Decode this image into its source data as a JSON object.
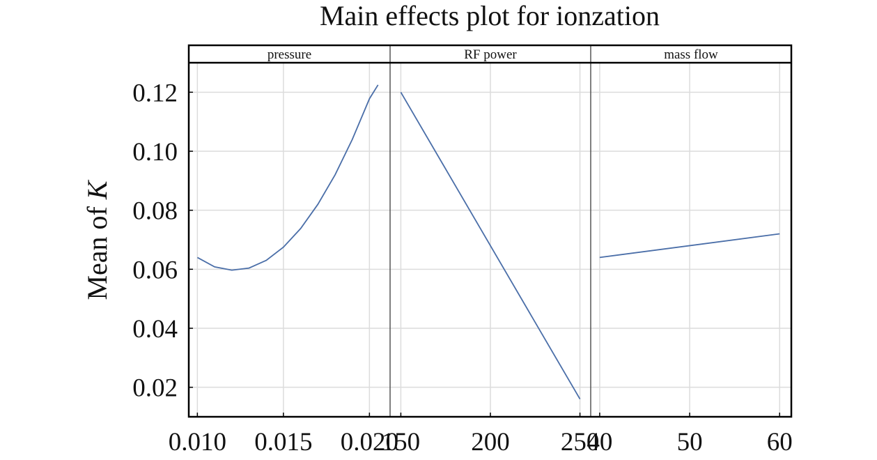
{
  "chart_data": {
    "type": "line",
    "title": "Main effects plot for ionzation",
    "ylabel": "Mean of ",
    "ylabel_italic": "K",
    "ylim": [
      0.01,
      0.13
    ],
    "yticks": [
      0.02,
      0.04,
      0.06,
      0.08,
      0.1,
      0.12
    ],
    "ytick_labels": [
      "0.02",
      "0.04",
      "0.06",
      "0.08",
      "0.10",
      "0.12"
    ],
    "grid": true,
    "line_color": "#4a6ea8",
    "panels": [
      {
        "label": "pressure",
        "xlim": [
          0.0095,
          0.0212
        ],
        "xticks": [
          0.01,
          0.015,
          0.02
        ],
        "xtick_labels": [
          "0.010",
          "0.015",
          "0.020"
        ],
        "x": [
          0.01,
          0.011,
          0.012,
          0.013,
          0.014,
          0.015,
          0.016,
          0.017,
          0.018,
          0.019,
          0.02,
          0.0205
        ],
        "y": [
          0.064,
          0.0608,
          0.0597,
          0.0604,
          0.063,
          0.0675,
          0.0738,
          0.082,
          0.092,
          0.104,
          0.1178,
          0.1225
        ]
      },
      {
        "label": "RF power",
        "xlim": [
          144,
          256
        ],
        "xticks": [
          150,
          200,
          250
        ],
        "xtick_labels": [
          "150",
          "200",
          "250"
        ],
        "x": [
          150,
          250
        ],
        "y": [
          0.12,
          0.016
        ]
      },
      {
        "label": "mass flow",
        "xlim": [
          39,
          61.3
        ],
        "xticks": [
          40,
          50,
          60
        ],
        "xtick_labels": [
          "40",
          "50",
          "60"
        ],
        "x": [
          40,
          60
        ],
        "y": [
          0.064,
          0.072
        ]
      }
    ]
  }
}
